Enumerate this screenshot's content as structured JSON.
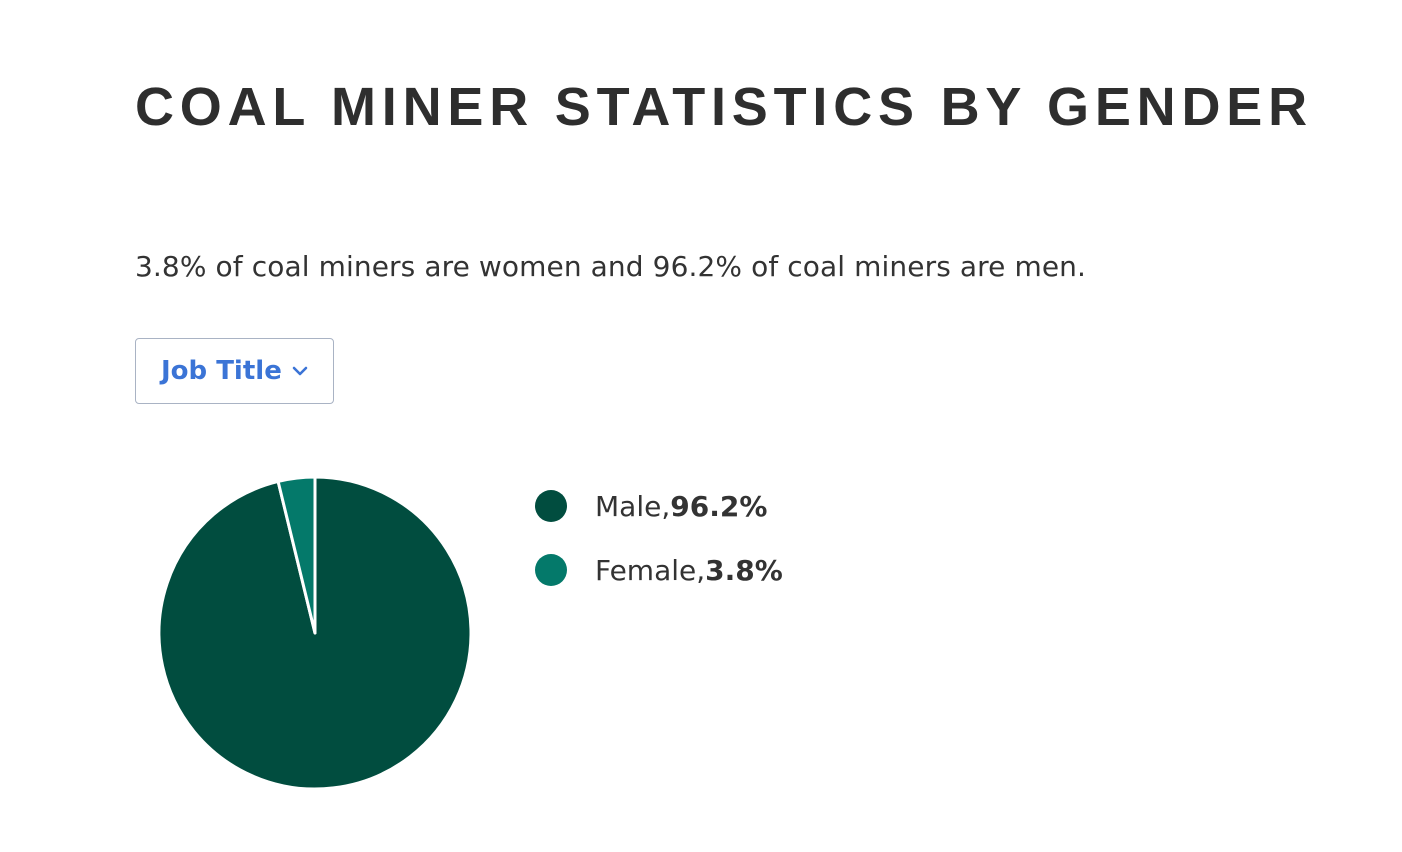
{
  "header": {
    "title": "COAL MINER STATISTICS BY GENDER"
  },
  "summary": {
    "text": "3.8% of coal miners are women and 96.2% of coal miners are men."
  },
  "filter": {
    "label": "Job Title",
    "icon": "chevron-down-icon",
    "color": "#3b74d6"
  },
  "chart_data": {
    "type": "pie",
    "slices": [
      {
        "label": "Male",
        "value": 96.2,
        "display": "Male, ",
        "display_value": "96.2%",
        "color": "#014d3f"
      },
      {
        "label": "Female",
        "value": 3.8,
        "display": "Female, ",
        "display_value": "3.8%",
        "color": "#04796a"
      }
    ],
    "start_angle_deg": 0,
    "direction": "clockwise",
    "legend_position": "right"
  }
}
